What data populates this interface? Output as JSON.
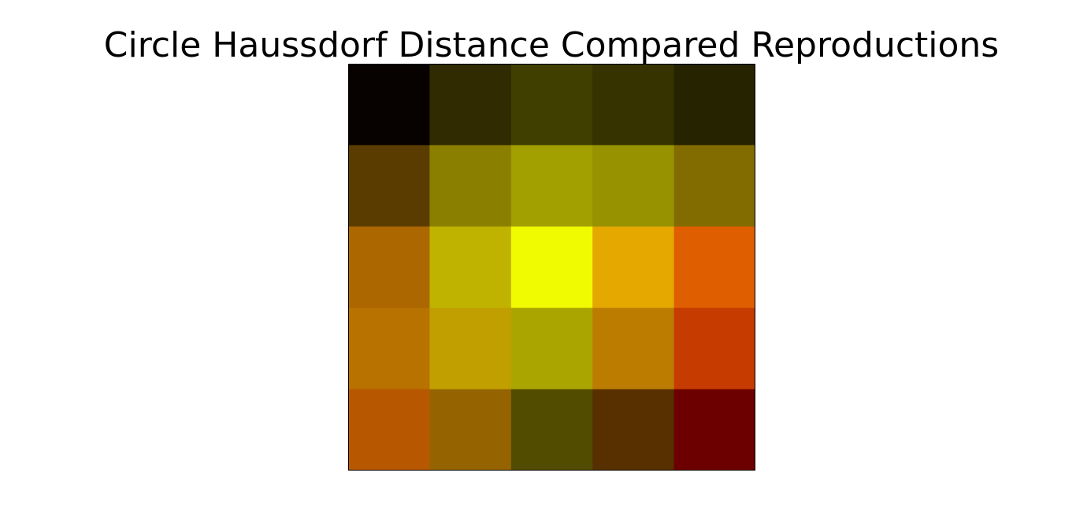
{
  "chart_data": {
    "type": "heatmap",
    "title": "Circle Haussdorf Distance Compared Reproductions",
    "xlabel": "",
    "ylabel": "",
    "rows": 5,
    "cols": 5,
    "axes_visible": false,
    "colorbar": false,
    "colormap": "hot-like",
    "cells": [
      [
        "#070200",
        "#302b00",
        "#403f00",
        "#363300",
        "#262400"
      ],
      [
        "#5b3c00",
        "#8b7f00",
        "#a29f00",
        "#969200",
        "#826c00"
      ],
      [
        "#ac6700",
        "#bfb300",
        "#f0fa00",
        "#e4a800",
        "#df5e00"
      ],
      [
        "#b77200",
        "#c29f00",
        "#aba500",
        "#bb7c00",
        "#c63b00"
      ],
      [
        "#b75800",
        "#956400",
        "#524c00",
        "#583000",
        "#6c0000"
      ]
    ]
  }
}
